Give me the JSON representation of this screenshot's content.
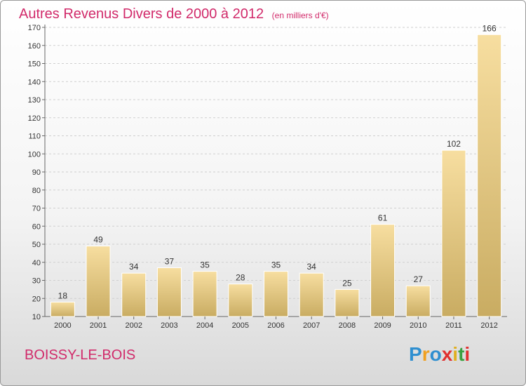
{
  "header": {
    "title": "Autres Revenus Divers de 2000 à 2012",
    "subtitle": "(en milliers d'€)"
  },
  "footer": {
    "commune": "BOISSY-LE-BOIS",
    "logo_letters": [
      "P",
      "r",
      "o",
      "x",
      "i",
      "t",
      "i"
    ],
    "logo_colors": [
      "#2f8fd0",
      "#f0a020",
      "#2f8fd0",
      "#e03030",
      "#e0b020",
      "#3aa040",
      "#e03030"
    ]
  },
  "colors": {
    "title": "#d12a6a",
    "bar_light": "#f7dea0",
    "bar_dark": "#c9ac62",
    "grid": "#cfcfcf"
  },
  "chart_data": {
    "type": "bar",
    "title": "Autres Revenus Divers de 2000 à 2012",
    "subtitle": "(en milliers d'€)",
    "categories": [
      "2000",
      "2001",
      "2002",
      "2003",
      "2004",
      "2005",
      "2006",
      "2007",
      "2008",
      "2009",
      "2010",
      "2011",
      "2012"
    ],
    "values": [
      18,
      49,
      34,
      37,
      35,
      28,
      35,
      34,
      25,
      61,
      27,
      102,
      166
    ],
    "ylim": [
      10,
      170
    ],
    "yticks": [
      10,
      20,
      30,
      40,
      50,
      60,
      70,
      80,
      90,
      100,
      110,
      120,
      130,
      140,
      150,
      160,
      170
    ],
    "grid": true,
    "legend": "none"
  }
}
